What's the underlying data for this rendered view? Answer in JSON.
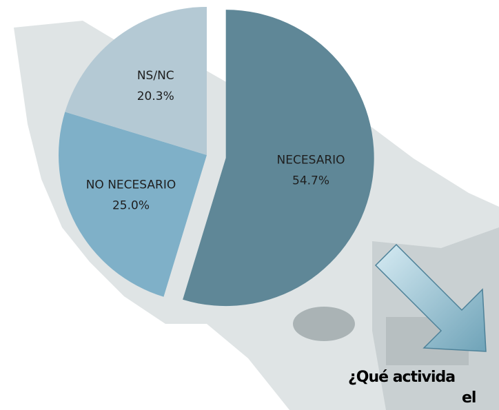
{
  "chart_data": {
    "type": "pie",
    "categories": [
      "NECESARIO",
      "NO NECESARIO",
      "NS/NC"
    ],
    "values": [
      54.7,
      25.0,
      20.3
    ],
    "value_labels": [
      "54.7%",
      "25.0%",
      "20.3%"
    ],
    "colors": [
      "#5f8797",
      "#7fb0c8",
      "#b4c9d4"
    ],
    "exploded": [
      true,
      false,
      false
    ]
  },
  "caption": [
    "¿Qué activida",
    "el"
  ]
}
